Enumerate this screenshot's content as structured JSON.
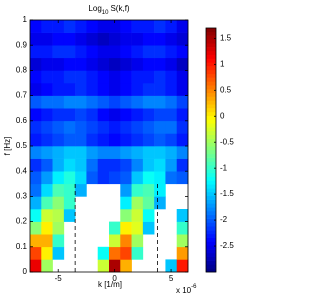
{
  "chart_data": {
    "type": "heatmap",
    "title": "Log",
    "title_sub": "10",
    "title_rest": "S(k,f)",
    "xlabel": "k [1/m]",
    "ylabel": "f [Hz]",
    "x_exponent_base": "x 10",
    "x_exponent": "-6",
    "x": [
      -7,
      -6,
      -5,
      -4,
      -3,
      -2,
      -1,
      0,
      1,
      2,
      3,
      4,
      5,
      6
    ],
    "y": [
      0.025,
      0.075,
      0.125,
      0.175,
      0.225,
      0.275,
      0.325,
      0.375,
      0.425,
      0.475,
      0.525,
      0.575,
      0.625,
      0.675,
      0.725,
      0.775,
      0.825,
      0.875,
      0.925,
      0.975
    ],
    "values": [
      [
        1.2,
        -0.5,
        null,
        null,
        null,
        null,
        -0.3,
        1.5,
        0.3,
        null,
        null,
        null,
        -1.5,
        1.0
      ],
      [
        0.8,
        0,
        -1.5,
        null,
        null,
        null,
        -1.2,
        0.6,
        0.8,
        -1,
        null,
        null,
        null,
        0.4
      ],
      [
        0.3,
        0.3,
        -1,
        null,
        null,
        null,
        null,
        -0.3,
        0.5,
        -0.5,
        null,
        null,
        null,
        -0.5
      ],
      [
        -0.6,
        0,
        -0.5,
        null,
        null,
        null,
        null,
        -1,
        0,
        -0.2,
        -1.5,
        null,
        null,
        -1
      ],
      [
        -1.2,
        -0.3,
        -0.4,
        -1.5,
        null,
        null,
        null,
        null,
        -0.6,
        -0.3,
        -1.2,
        null,
        null,
        -1.5
      ],
      [
        -1.6,
        -0.9,
        -0.6,
        -1,
        null,
        null,
        null,
        null,
        -1.3,
        -0.5,
        -0.8,
        -1.6,
        null,
        null
      ],
      [
        -1.9,
        -1.4,
        -0.9,
        -1,
        -1.6,
        null,
        null,
        null,
        -1.7,
        -1,
        -0.9,
        -1.3,
        null,
        null
      ],
      [
        -2,
        -1.7,
        -1.3,
        -1.1,
        -1.4,
        -2,
        -2.2,
        -2.1,
        -2,
        -1.5,
        -1.2,
        -1.3,
        -1.9,
        -2
      ],
      [
        -2.2,
        -2,
        -1.6,
        -1.4,
        -1.5,
        -1.9,
        -2.2,
        -2.2,
        -2.1,
        -1.8,
        -1.5,
        -1.4,
        -1.7,
        -2.2
      ],
      [
        -1.8,
        -1.7,
        -1.6,
        -1.5,
        -1.5,
        -1.7,
        -1.8,
        -1.8,
        -1.7,
        -1.6,
        -1.5,
        -1.5,
        -1.6,
        -1.8
      ],
      [
        -2.3,
        -2.2,
        -2.1,
        -2,
        -2,
        -2.2,
        -2.3,
        -2.4,
        -2.3,
        -2.2,
        -2.1,
        -2,
        -2.1,
        -2.3
      ],
      [
        -2.2,
        -2.1,
        -2,
        -1.9,
        -2,
        -2.1,
        -2.2,
        -2.3,
        -2.2,
        -2.1,
        -2,
        -1.9,
        -1.9,
        -2.2
      ],
      [
        -2.4,
        -2.3,
        -2.2,
        -2.2,
        -2.1,
        -2.2,
        -2.4,
        -2.5,
        -2.4,
        -2.3,
        -2.2,
        -2.1,
        -2.1,
        -2.3
      ],
      [
        -2,
        -1.9,
        -1.9,
        -1.8,
        -1.8,
        -1.9,
        -2,
        -2.1,
        -2,
        -1.9,
        -1.8,
        -1.8,
        -1.9,
        -2.1
      ],
      [
        -2.5,
        -2.4,
        -2.3,
        -2.3,
        -2.2,
        -2.3,
        -2.4,
        -2.5,
        -2.4,
        -2.3,
        -2.2,
        -2.2,
        -2.3,
        -2.5
      ],
      [
        -2.4,
        -2.3,
        -2.3,
        -2.2,
        -2.2,
        -2.3,
        -2.4,
        -2.5,
        -2.4,
        -2.3,
        -2.3,
        -2.2,
        -2.3,
        -2.5
      ],
      [
        -2.6,
        -2.5,
        -2.5,
        -2.4,
        -2.4,
        -2.5,
        -2.6,
        -2.7,
        -2.6,
        -2.5,
        -2.4,
        -2.4,
        -2.5,
        -2.7
      ],
      [
        -2.3,
        -2.3,
        -2.2,
        -2.2,
        -2.3,
        -2.4,
        -2.5,
        -2.5,
        -2.4,
        -2.3,
        -2.2,
        -2.2,
        -2.3,
        -2.4
      ],
      [
        -2.5,
        -2.5,
        -2.4,
        -2.4,
        -2.5,
        -2.6,
        -2.7,
        -2.6,
        -2.5,
        -2.5,
        -2.4,
        -2.4,
        -2.5,
        -2.6
      ],
      [
        -2.4,
        -2.3,
        -2.3,
        -2.2,
        -2.3,
        -2.4,
        -2.5,
        -2.5,
        -2.4,
        -2.3,
        -2.3,
        -2.2,
        -2.3,
        -2.5
      ]
    ],
    "xlim": [
      -7.5,
      6.5
    ],
    "ylim": [
      0,
      1
    ],
    "xticks": [
      -5,
      0,
      5
    ],
    "yticks": [
      0,
      0.1,
      0.2,
      0.3,
      0.4,
      0.5,
      0.6,
      0.7,
      0.8,
      0.9,
      1
    ],
    "clim": [
      -3.0,
      1.7
    ],
    "cticks": [
      -2.5,
      -2,
      -1.5,
      -1,
      -0.5,
      0,
      0.5,
      1,
      1.5
    ],
    "colormap": "jet",
    "vlines": [
      -3.5,
      3.8
    ],
    "vline_top": 0.35
  }
}
